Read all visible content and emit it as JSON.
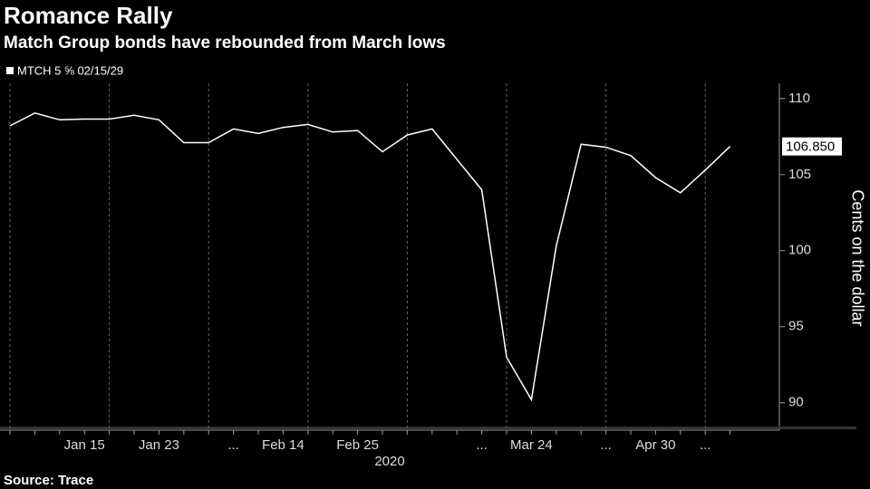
{
  "chart_data": {
    "type": "line",
    "title": "Romance Rally",
    "subtitle": "Match Group bonds have rebounded from March lows",
    "x_label": "2020",
    "y_label": "Cents on the dollar",
    "source": "Source: Trace",
    "categories": [
      null,
      null,
      null,
      "Jan 15",
      null,
      null,
      "Jan 23",
      null,
      null,
      "...",
      null,
      "Feb 14",
      null,
      null,
      "Feb 25",
      null,
      null,
      null,
      null,
      "...",
      null,
      "Mar 24",
      null,
      null,
      "...",
      null,
      "Apr 30",
      null,
      "...",
      null
    ],
    "series": [
      {
        "name": "MTCH 5 ⅝ 02/15/29",
        "color": "#ffffff",
        "values": [
          108.2,
          109.05,
          108.6,
          108.65,
          108.65,
          108.9,
          108.6,
          107.1,
          107.1,
          108.0,
          107.7,
          108.1,
          108.3,
          107.8,
          107.9,
          106.5,
          107.6,
          108.0,
          106.0,
          104.0,
          93.0,
          90.2,
          100.3,
          107.0,
          106.8,
          106.25,
          104.8,
          103.8,
          105.3,
          106.85
        ],
        "value_labels": [
          null,
          null,
          null,
          null,
          null,
          null,
          null,
          null,
          null,
          null,
          null,
          null,
          null,
          null,
          null,
          null,
          null,
          null,
          null,
          null,
          null,
          null,
          null,
          null,
          null,
          null,
          null,
          null,
          null,
          "106.850"
        ]
      }
    ],
    "ylim": [
      88.2,
      111
    ],
    "yticks": [
      90,
      95,
      100,
      105,
      110
    ],
    "grid": true
  }
}
